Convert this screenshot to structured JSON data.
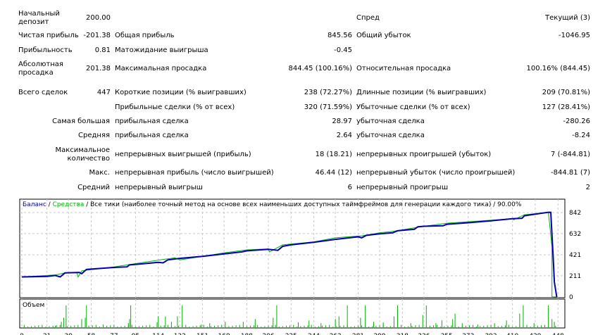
{
  "report": {
    "rows": [
      {
        "y": 14,
        "l1": "Начальный\nдепозит",
        "v1": "200.00",
        "l2": "",
        "v2": "",
        "l3": "Спред",
        "v3": "Текущий (3)"
      },
      {
        "y": 45,
        "l1": "Чистая прибыль",
        "v1": "-201.38",
        "l2": "Общая прибыль",
        "v2": "845.56",
        "l3": "Общий убыток",
        "v3": "-1046.95"
      },
      {
        "y": 66,
        "l1": "Прибыльность",
        "v1": "0.81",
        "l2": "Матожидание выигрыша",
        "v2": "-0.45",
        "l3": "",
        "v3": ""
      },
      {
        "y": 86,
        "l1": "Абсолютная\nпросадка",
        "v1": "201.38",
        "l2": "Максимальная просадка",
        "v2": "844.45 (100.16%)",
        "l3": "Относительная просадка",
        "v3": "100.16% (844.45)"
      },
      {
        "y": 126,
        "l1": "Всего сделок",
        "v1": "447",
        "l2": "Короткие позиции (% выигравших)",
        "v2": "238 (72.27%)",
        "l3": "Длинные позиции (% выигравших)",
        "v3": "209 (70.81%)"
      },
      {
        "y": 147,
        "l1": "",
        "v1": "",
        "l2": "Прибыльные сделки (% от всех)",
        "v2": "320 (71.59%)",
        "l3": "Убыточные сделки (% от всех)",
        "v3": "127 (28.41%)"
      },
      {
        "y": 167,
        "l1r": "Самая большая",
        "l2": "прибыльная сделка",
        "v2": "28.97",
        "l3": "убыточная сделка",
        "v3": "-280.26"
      },
      {
        "y": 187,
        "l1r": "Средняя",
        "l2": "прибыльная сделка",
        "v2": "2.64",
        "l3": "убыточная сделка",
        "v3": "-8.24"
      },
      {
        "y": 208,
        "l1r": "Максимальное\nколичество",
        "l2": "непрерывных выигрышей (прибыль)",
        "v2": "18 (18.21)",
        "l3": "непрерывных проигрышей (убыток)",
        "v3": "7 (-844.81)"
      },
      {
        "y": 240,
        "l1r": "Макс.",
        "l2": "непрерывная прибыль (число выигрышей)",
        "v2": "46.44 (12)",
        "l3": "непрерывный убыток (число проигрышей)",
        "v3": "-844.81 (7)"
      },
      {
        "y": 261,
        "l1r": "Средний",
        "l2": "непрерывный выигрыш",
        "v2": "6",
        "l3": "непрерывный проигрыш",
        "v3": "2"
      }
    ]
  },
  "chart_data": {
    "type": "line",
    "legend": {
      "balance": "Баланс",
      "equity": "Средства",
      "rest": " / Все тики (наиболее точный метод на основе всех наименьших доступных таймфреймов для генерации каждого тика) / 90.00%"
    },
    "volume_label": "Объем",
    "colors": {
      "balance": "#0000b4",
      "equity": "#00b400",
      "volume": "#00b400"
    },
    "ylim": [
      0,
      842
    ],
    "yticks": [
      842,
      632,
      421,
      211,
      0
    ],
    "xlim": [
      0,
      452
    ],
    "xticks": [
      0,
      21,
      39,
      58,
      77,
      95,
      114,
      132,
      151,
      169,
      188,
      206,
      225,
      244,
      262,
      281,
      299,
      318,
      336,
      355,
      373,
      392,
      410,
      429,
      448
    ],
    "grid": true,
    "balance": [
      [
        0,
        200
      ],
      [
        21,
        205
      ],
      [
        28,
        215
      ],
      [
        32,
        200
      ],
      [
        36,
        240
      ],
      [
        48,
        245
      ],
      [
        50,
        232
      ],
      [
        54,
        275
      ],
      [
        77,
        295
      ],
      [
        88,
        300
      ],
      [
        90,
        320
      ],
      [
        100,
        330
      ],
      [
        114,
        345
      ],
      [
        118,
        340
      ],
      [
        122,
        370
      ],
      [
        132,
        385
      ],
      [
        151,
        405
      ],
      [
        169,
        430
      ],
      [
        184,
        450
      ],
      [
        188,
        460
      ],
      [
        206,
        475
      ],
      [
        214,
        465
      ],
      [
        218,
        505
      ],
      [
        225,
        520
      ],
      [
        244,
        545
      ],
      [
        262,
        575
      ],
      [
        281,
        600
      ],
      [
        284,
        590
      ],
      [
        288,
        615
      ],
      [
        299,
        630
      ],
      [
        310,
        640
      ],
      [
        314,
        660
      ],
      [
        318,
        665
      ],
      [
        328,
        675
      ],
      [
        331,
        700
      ],
      [
        336,
        705
      ],
      [
        352,
        710
      ],
      [
        355,
        725
      ],
      [
        373,
        740
      ],
      [
        392,
        760
      ],
      [
        410,
        780
      ],
      [
        418,
        785
      ],
      [
        420,
        810
      ],
      [
        440,
        845
      ],
      [
        442,
        844
      ],
      [
        444,
        400
      ],
      [
        445,
        150
      ],
      [
        447,
        0
      ]
    ],
    "equity": [
      [
        0,
        200
      ],
      [
        28,
        220
      ],
      [
        36,
        240
      ],
      [
        46,
        240
      ],
      [
        47,
        200
      ],
      [
        50,
        260
      ],
      [
        77,
        300
      ],
      [
        88,
        320
      ],
      [
        118,
        375
      ],
      [
        128,
        390
      ],
      [
        132,
        370
      ],
      [
        151,
        405
      ],
      [
        169,
        440
      ],
      [
        188,
        470
      ],
      [
        206,
        480
      ],
      [
        207,
        450
      ],
      [
        218,
        520
      ],
      [
        244,
        550
      ],
      [
        262,
        590
      ],
      [
        284,
        610
      ],
      [
        299,
        640
      ],
      [
        310,
        655
      ],
      [
        318,
        670
      ],
      [
        328,
        690
      ],
      [
        336,
        705
      ],
      [
        355,
        735
      ],
      [
        410,
        780
      ],
      [
        411,
        770
      ],
      [
        420,
        820
      ],
      [
        440,
        845
      ],
      [
        443,
        500
      ],
      [
        443,
        2
      ],
      [
        447,
        0
      ]
    ],
    "volume": [
      [
        28,
        6
      ],
      [
        33,
        20
      ],
      [
        35,
        35
      ],
      [
        37,
        80
      ],
      [
        50,
        30
      ],
      [
        53,
        35
      ],
      [
        54,
        80
      ],
      [
        68,
        10
      ],
      [
        89,
        15
      ],
      [
        90,
        30
      ],
      [
        91,
        80
      ],
      [
        113,
        18
      ],
      [
        114,
        40
      ],
      [
        120,
        40
      ],
      [
        125,
        20
      ],
      [
        130,
        40
      ],
      [
        134,
        80
      ],
      [
        150,
        10
      ],
      [
        157,
        15
      ],
      [
        170,
        20
      ],
      [
        185,
        20
      ],
      [
        195,
        30
      ],
      [
        210,
        35
      ],
      [
        213,
        80
      ],
      [
        231,
        18
      ],
      [
        240,
        25
      ],
      [
        250,
        15
      ],
      [
        262,
        30
      ],
      [
        265,
        40
      ],
      [
        272,
        80
      ],
      [
        283,
        35
      ],
      [
        287,
        80
      ],
      [
        294,
        20
      ],
      [
        302,
        18
      ],
      [
        311,
        40
      ],
      [
        314,
        80
      ],
      [
        325,
        15
      ],
      [
        335,
        45
      ],
      [
        338,
        80
      ],
      [
        346,
        15
      ],
      [
        351,
        25
      ],
      [
        360,
        30
      ],
      [
        362,
        50
      ],
      [
        368,
        15
      ],
      [
        381,
        10
      ],
      [
        395,
        15
      ],
      [
        405,
        25
      ],
      [
        416,
        50
      ],
      [
        419,
        80
      ],
      [
        428,
        15
      ],
      [
        440,
        80
      ],
      [
        443,
        30
      ],
      [
        445,
        20
      ]
    ]
  }
}
